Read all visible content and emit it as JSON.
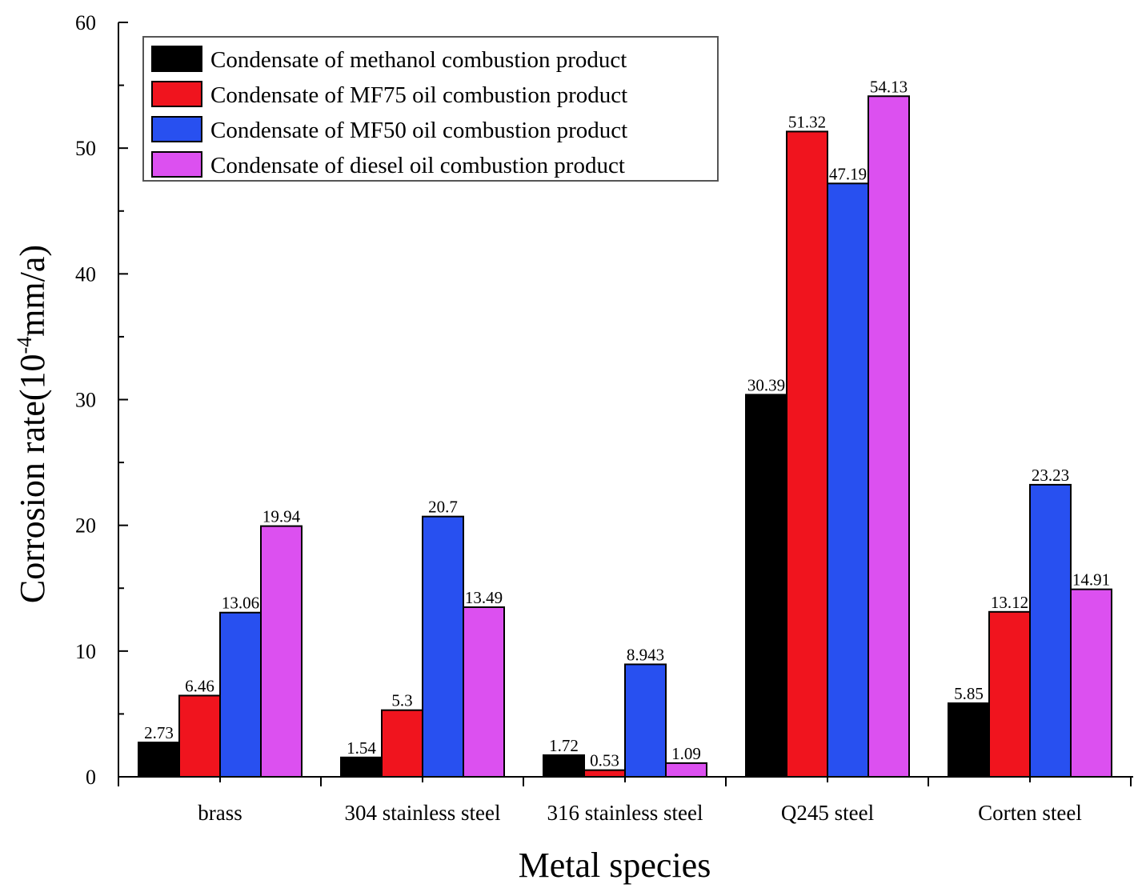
{
  "chart_data": {
    "type": "bar",
    "title": "",
    "xlabel": "Metal species",
    "ylabel": "Corrosion rate(10",
    "ylabel_exponent": "-4",
    "ylabel_unit": "mm/a)",
    "ylim": [
      0,
      60
    ],
    "yticks": [
      "0",
      "10",
      "20",
      "30",
      "40",
      "50",
      "60"
    ],
    "grid": false,
    "legend_position": "top-left",
    "categories": [
      "brass",
      "304 stainless steel",
      "316 stainless steel",
      "Q245 steel",
      "Corten steel"
    ],
    "series": [
      {
        "name": "Condensate of methanol combustion product",
        "color": "#000000",
        "values": [
          2.73,
          1.54,
          1.72,
          30.39,
          5.85
        ],
        "labels": [
          "2.73",
          "1.54",
          "1.72",
          "30.39",
          "5.85"
        ]
      },
      {
        "name": "Condensate of MF75 oil combustion product",
        "color": "#f0141e",
        "values": [
          6.46,
          5.3,
          0.53,
          51.32,
          13.12
        ],
        "labels": [
          "6.46",
          "5.3",
          "0.53",
          "51.32",
          "13.12"
        ]
      },
      {
        "name": "Condensate of MF50 oil combustion product",
        "color": "#2850f0",
        "values": [
          13.06,
          20.7,
          8.943,
          47.19,
          23.23
        ],
        "labels": [
          "13.06",
          "20.7",
          "8.943",
          "47.19",
          "23.23"
        ]
      },
      {
        "name": "Condensate of diesel oil combustion product",
        "color": "#dc50f0",
        "values": [
          19.94,
          13.49,
          1.09,
          54.13,
          14.91
        ],
        "labels": [
          "19.94",
          "13.49",
          "1.09",
          "54.13",
          "14.91"
        ]
      }
    ]
  }
}
